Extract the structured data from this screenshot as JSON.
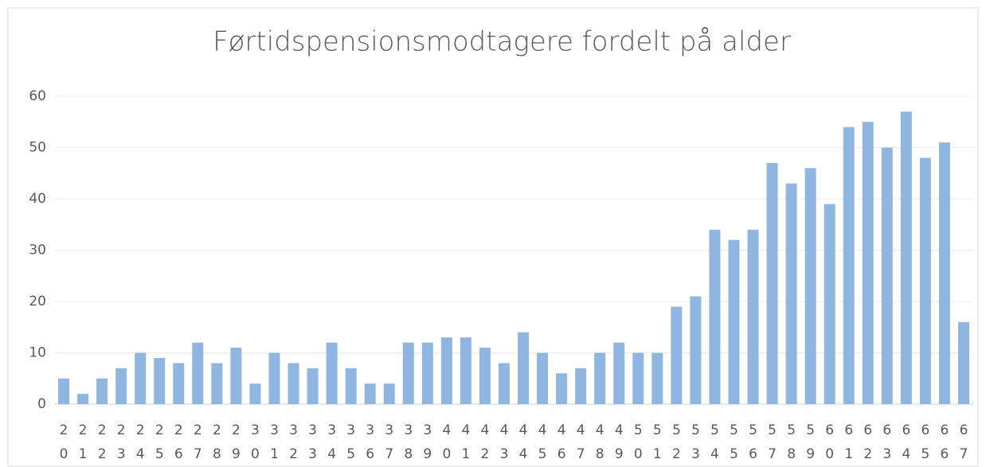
{
  "chart_data": {
    "type": "bar",
    "title": "Førtidspensionsmodtagere fordelt på alder",
    "categories": [
      "20",
      "21",
      "22",
      "23",
      "24",
      "25",
      "26",
      "27",
      "28",
      "29",
      "30",
      "31",
      "32",
      "33",
      "34",
      "35",
      "36",
      "37",
      "38",
      "39",
      "40",
      "41",
      "42",
      "43",
      "44",
      "45",
      "46",
      "47",
      "48",
      "49",
      "50",
      "51",
      "52",
      "53",
      "54",
      "55",
      "56",
      "57",
      "58",
      "59",
      "60",
      "61",
      "62",
      "63",
      "64",
      "65",
      "66",
      "67"
    ],
    "values": [
      5,
      2,
      5,
      7,
      10,
      9,
      8,
      12,
      8,
      11,
      4,
      10,
      8,
      7,
      12,
      7,
      4,
      4,
      12,
      12,
      13,
      13,
      11,
      8,
      14,
      10,
      6,
      7,
      10,
      12,
      10,
      10,
      19,
      21,
      34,
      32,
      34,
      47,
      43,
      46,
      39,
      54,
      55,
      50,
      57,
      48,
      51,
      16
    ],
    "color": "#8fb6e1",
    "ylim": [
      0,
      60
    ],
    "yticks": [
      0,
      10,
      20,
      30,
      40,
      50,
      60
    ],
    "grid": true
  }
}
